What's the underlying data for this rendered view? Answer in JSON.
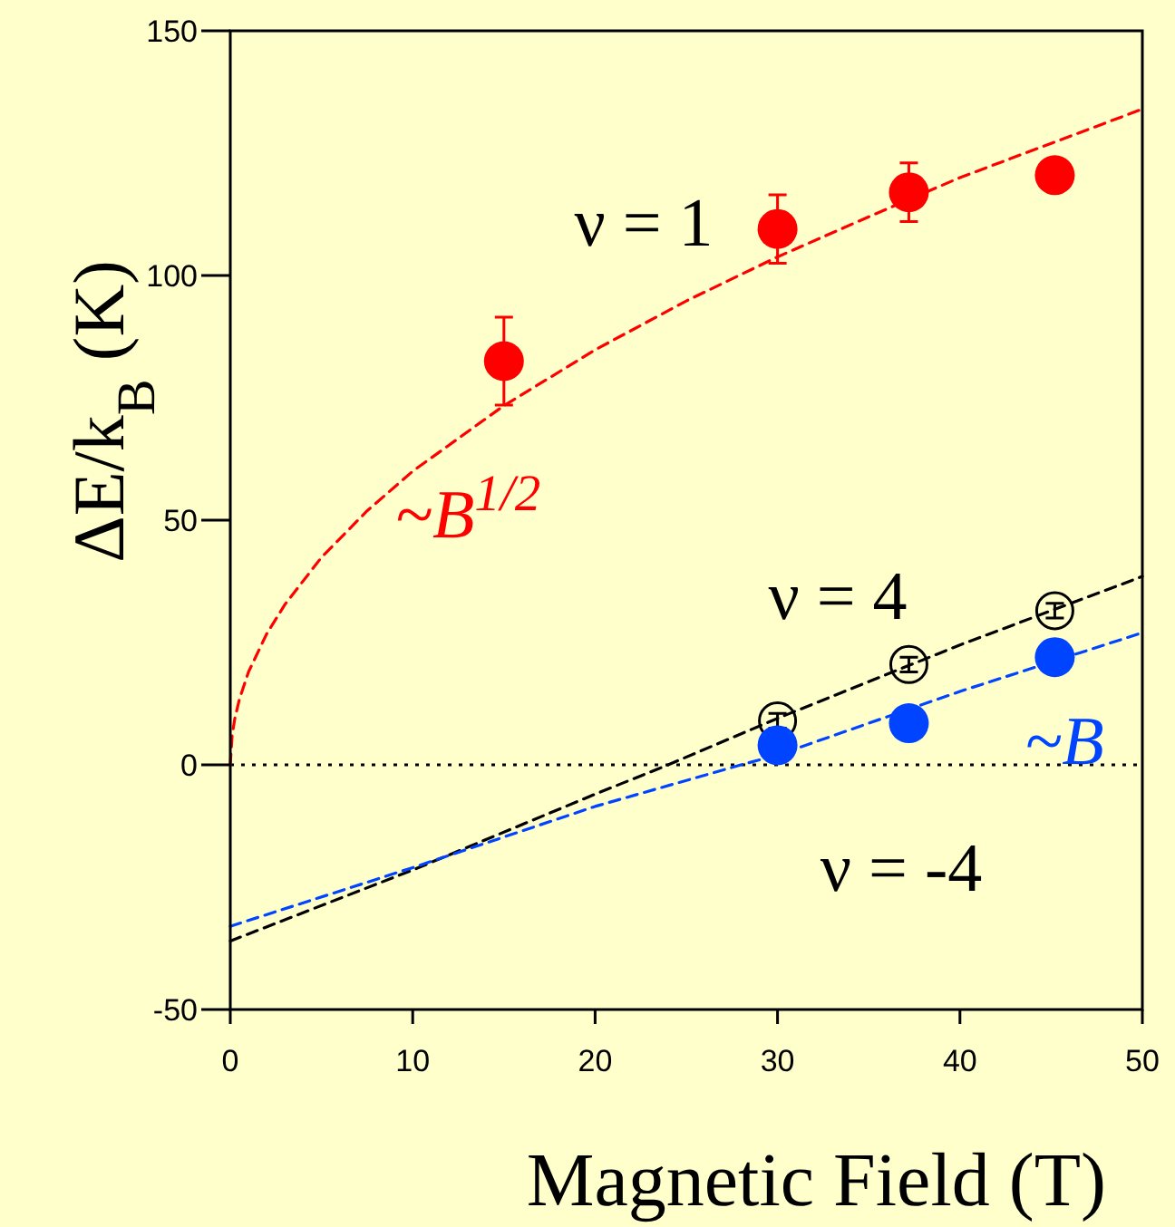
{
  "chart_data": {
    "type": "scatter",
    "xlabel": "Magnetic Field (T)",
    "ylabel": "ΔE/k$_{B}$ (K)",
    "xlim": [
      0,
      50
    ],
    "ylim": [
      -50,
      150
    ],
    "xticks": [
      0,
      10,
      20,
      30,
      40,
      50
    ],
    "yticks": [
      -50,
      0,
      50,
      100,
      150
    ],
    "grid": false,
    "series": [
      {
        "type": "line",
        "color": "#ff0000",
        "line_style": "dashed",
        "marker": "none",
        "x": [
          0,
          0.1,
          0.25,
          0.5,
          1,
          2,
          3,
          5,
          7.5,
          10,
          15,
          20,
          25,
          30,
          35,
          40,
          45,
          50
        ],
        "values": [
          0,
          6,
          9.5,
          13.4,
          19,
          26.8,
          32.8,
          42.4,
          51.9,
          60,
          73.4,
          84.8,
          94.8,
          103.8,
          112,
          120,
          127,
          134
        ]
      },
      {
        "type": "line",
        "color": "#000000",
        "line_style": "dashed",
        "marker": "none",
        "x": [
          0,
          10,
          20,
          24,
          30,
          40,
          50
        ],
        "values": [
          -36,
          -21.5,
          -6,
          0,
          9.5,
          24.5,
          38.5
        ]
      },
      {
        "type": "line",
        "color": "#0044ff",
        "line_style": "dashed",
        "marker": "none",
        "x": [
          0,
          10,
          20,
          28,
          30,
          40,
          50
        ],
        "values": [
          -33,
          -21,
          -8.5,
          0,
          2,
          15,
          27
        ]
      },
      {
        "color": "#ff0000",
        "marker": "circle",
        "x": [
          15,
          30,
          37.2,
          45.2
        ],
        "values": [
          82.5,
          109.5,
          117,
          120.5
        ],
        "errors": [
          9,
          7,
          6,
          null
        ]
      },
      {
        "color": "#000000",
        "x": [
          30,
          37.2,
          45.2
        ],
        "values": [
          9,
          20.5,
          31.5
        ],
        "errors": [
          1.5,
          1.5,
          1.5
        ]
      },
      {
        "color": "#0044ff",
        "marker": "circle",
        "x": [
          30,
          37.2,
          45.2
        ],
        "values": [
          4,
          8.5,
          22
        ]
      }
    ],
    "ref_lines": [
      {
        "axis": "y",
        "value": 0,
        "color": "#000000",
        "line_style": "dotted"
      }
    ],
    "annotations": [
      "ν = 1",
      "~B$^{1/2}$",
      "ν = 4",
      "~B",
      "ν = -4"
    ]
  }
}
